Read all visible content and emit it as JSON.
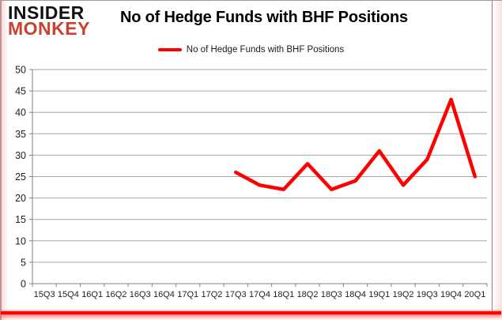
{
  "brand": {
    "line1": "INSIDER",
    "line2": "MONKEY",
    "monkey_color": "#c8432f"
  },
  "header": {
    "title": "No of Hedge Funds with BHF Positions"
  },
  "legend": {
    "label": "No of Hedge Funds with BHF Positions",
    "swatch_color": "#ff0000"
  },
  "chart_data": {
    "type": "line",
    "title": "No of Hedge Funds with BHF Positions",
    "xlabel": "",
    "ylabel": "",
    "categories": [
      "15Q3",
      "15Q4",
      "16Q1",
      "16Q2",
      "16Q3",
      "16Q4",
      "17Q1",
      "17Q2",
      "17Q3",
      "17Q4",
      "18Q1",
      "18Q2",
      "18Q3",
      "18Q4",
      "19Q1",
      "19Q2",
      "19Q3",
      "19Q4",
      "20Q1"
    ],
    "series": [
      {
        "name": "No of Hedge Funds with BHF Positions",
        "color": "#ff0000",
        "values": [
          null,
          null,
          null,
          null,
          null,
          null,
          null,
          null,
          26,
          23,
          22,
          28,
          22,
          24,
          31,
          23,
          29,
          43,
          25
        ]
      }
    ],
    "ylim": [
      0,
      50
    ],
    "ytick_step": 5,
    "yticks": [
      0,
      5,
      10,
      15,
      20,
      25,
      30,
      35,
      40,
      45,
      50
    ],
    "grid": true,
    "legend_position": "top",
    "colors": {
      "gridline": "#a6a6a6",
      "axis": "#808080",
      "tick_label": "#1f1f1f"
    }
  }
}
